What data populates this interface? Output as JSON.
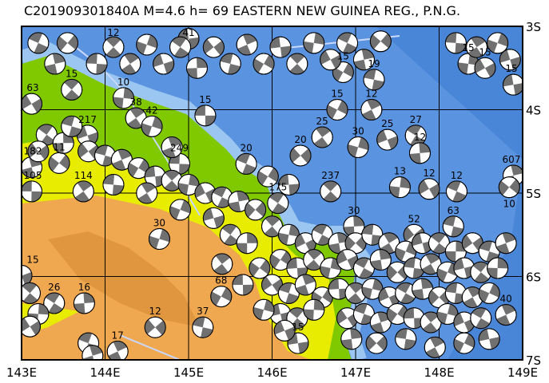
{
  "title": "C201909301840A  M=4.6  h=  69  EASTERN  NEW  GUINEA REG., P.N.G.",
  "map": {
    "lon_range": [
      143,
      149
    ],
    "lat_range": [
      -3,
      -7
    ],
    "lon_ticks": [
      {
        "value": 143,
        "label": "143E"
      },
      {
        "value": 144,
        "label": "144E"
      },
      {
        "value": 145,
        "label": "145E"
      },
      {
        "value": 146,
        "label": "146E"
      },
      {
        "value": 147,
        "label": "147E"
      },
      {
        "value": 148,
        "label": "148E"
      },
      {
        "value": 149,
        "label": "149E"
      }
    ],
    "lat_ticks": [
      {
        "value": -3,
        "label": "3S"
      },
      {
        "value": -4,
        "label": "4S"
      },
      {
        "value": -5,
        "label": "5S"
      },
      {
        "value": -6,
        "label": "6S"
      },
      {
        "value": -7,
        "label": "7S"
      }
    ],
    "grid": true,
    "colors": {
      "ocean_deep": "#3f7fd6",
      "ocean": "#5a93df",
      "shelf": "#9cc6f2",
      "lowland": "#80c800",
      "hills": "#e8ec00",
      "highland": "#f0a850",
      "peaks": "#dc8c3c",
      "mechanism_fill": "#707070"
    }
  },
  "events": [
    [
      145.2,
      -4.07,
      "15"
    ],
    [
      146.6,
      -4.33,
      "25"
    ],
    [
      147.03,
      -4.45,
      "30"
    ],
    [
      147.38,
      -4.36,
      "25"
    ],
    [
      147.72,
      -4.31,
      "27"
    ],
    [
      147.77,
      -4.52,
      "12"
    ],
    [
      146.34,
      -4.55,
      "20"
    ],
    [
      147.22,
      -3.64,
      "19"
    ],
    [
      147.19,
      -4.0,
      "12"
    ],
    [
      146.78,
      -4.0,
      "15"
    ],
    [
      148.89,
      -3.7,
      "15"
    ],
    [
      143.6,
      -3.76,
      "15"
    ],
    [
      144.22,
      -3.86,
      "10"
    ],
    [
      143.12,
      -3.93,
      "63"
    ],
    [
      145.69,
      -4.65,
      "20"
    ],
    [
      143.12,
      -4.69,
      "182"
    ],
    [
      143.45,
      -4.64,
      "11"
    ],
    [
      143.12,
      -4.98,
      "105"
    ],
    [
      143.74,
      -4.98,
      "114"
    ],
    [
      144.65,
      -5.55,
      "30"
    ],
    [
      143.0,
      -5.99,
      "15"
    ],
    [
      143.39,
      -6.32,
      "26"
    ],
    [
      143.75,
      -6.32,
      "16"
    ],
    [
      144.6,
      -6.61,
      "12"
    ],
    [
      145.17,
      -6.61,
      "37"
    ],
    [
      144.15,
      -6.9,
      "17"
    ],
    [
      145.39,
      -6.24,
      "68"
    ],
    [
      146.31,
      -6.8,
      "15"
    ],
    [
      146.7,
      -4.98,
      "237"
    ],
    [
      147.53,
      -4.93,
      "13"
    ],
    [
      147.88,
      -4.95,
      "12"
    ],
    [
      148.21,
      -4.98,
      "12"
    ],
    [
      148.89,
      -4.79,
      "607"
    ],
    [
      148.84,
      -4.93,
      "10"
    ],
    [
      144.89,
      -4.65,
      "249"
    ],
    [
      144.37,
      -4.1,
      "38"
    ],
    [
      144.56,
      -4.2,
      "42"
    ],
    [
      143.79,
      -4.31,
      "217"
    ],
    [
      146.07,
      -5.12,
      "175"
    ],
    [
      146.98,
      -5.4,
      "30"
    ],
    [
      147.7,
      -5.5,
      "52"
    ],
    [
      148.17,
      -5.4,
      "63"
    ],
    [
      148.8,
      -6.46,
      "40"
    ],
    [
      146.85,
      -3.55,
      "15"
    ],
    [
      145.0,
      -3.15,
      "41"
    ],
    [
      144.1,
      -3.25,
      "12"
    ],
    [
      148.35,
      -3.45,
      "15"
    ],
    [
      148.55,
      -3.5,
      "15"
    ],
    [
      143.2,
      -3.2,
      ""
    ],
    [
      143.4,
      -3.45,
      ""
    ],
    [
      143.55,
      -3.2,
      ""
    ],
    [
      143.9,
      -3.45,
      ""
    ],
    [
      144.3,
      -3.45,
      ""
    ],
    [
      144.5,
      -3.22,
      ""
    ],
    [
      144.7,
      -3.45,
      ""
    ],
    [
      144.9,
      -3.25,
      ""
    ],
    [
      145.1,
      -3.5,
      ""
    ],
    [
      145.3,
      -3.25,
      ""
    ],
    [
      145.5,
      -3.45,
      ""
    ],
    [
      145.7,
      -3.22,
      ""
    ],
    [
      145.9,
      -3.45,
      ""
    ],
    [
      146.1,
      -3.25,
      ""
    ],
    [
      146.3,
      -3.45,
      ""
    ],
    [
      146.5,
      -3.2,
      ""
    ],
    [
      146.7,
      -3.4,
      ""
    ],
    [
      146.9,
      -3.2,
      ""
    ],
    [
      147.1,
      -3.4,
      ""
    ],
    [
      147.3,
      -3.18,
      ""
    ],
    [
      148.2,
      -3.2,
      ""
    ],
    [
      148.45,
      -3.25,
      ""
    ],
    [
      148.7,
      -3.2,
      ""
    ],
    [
      148.85,
      -3.4,
      ""
    ],
    [
      143.3,
      -4.3,
      ""
    ],
    [
      143.5,
      -4.4,
      ""
    ],
    [
      143.8,
      -4.5,
      ""
    ],
    [
      144.0,
      -4.55,
      ""
    ],
    [
      144.2,
      -4.6,
      ""
    ],
    [
      144.4,
      -4.7,
      ""
    ],
    [
      144.6,
      -4.8,
      ""
    ],
    [
      144.8,
      -4.85,
      ""
    ],
    [
      145.0,
      -4.9,
      ""
    ],
    [
      145.2,
      -5.0,
      ""
    ],
    [
      145.4,
      -5.05,
      ""
    ],
    [
      145.6,
      -5.1,
      ""
    ],
    [
      145.8,
      -5.2,
      ""
    ],
    [
      144.1,
      -4.9,
      ""
    ],
    [
      144.5,
      -5.0,
      ""
    ],
    [
      144.9,
      -5.2,
      ""
    ],
    [
      145.3,
      -5.3,
      ""
    ],
    [
      145.5,
      -5.5,
      ""
    ],
    [
      145.7,
      -5.6,
      ""
    ],
    [
      143.2,
      -4.5,
      ""
    ],
    [
      143.6,
      -4.2,
      ""
    ],
    [
      144.8,
      -4.45,
      ""
    ],
    [
      145.95,
      -4.8,
      ""
    ],
    [
      146.2,
      -4.9,
      ""
    ],
    [
      146.0,
      -5.4,
      ""
    ],
    [
      146.2,
      -5.5,
      ""
    ],
    [
      146.4,
      -5.6,
      ""
    ],
    [
      146.6,
      -5.5,
      ""
    ],
    [
      146.8,
      -5.6,
      ""
    ],
    [
      147.0,
      -5.6,
      ""
    ],
    [
      147.2,
      -5.5,
      ""
    ],
    [
      147.4,
      -5.6,
      ""
    ],
    [
      147.6,
      -5.7,
      ""
    ],
    [
      147.8,
      -5.6,
      ""
    ],
    [
      148.0,
      -5.6,
      ""
    ],
    [
      148.2,
      -5.7,
      ""
    ],
    [
      148.4,
      -5.6,
      ""
    ],
    [
      148.6,
      -5.7,
      ""
    ],
    [
      148.8,
      -5.6,
      ""
    ],
    [
      146.1,
      -5.8,
      ""
    ],
    [
      146.3,
      -5.9,
      ""
    ],
    [
      146.5,
      -5.8,
      ""
    ],
    [
      146.7,
      -5.9,
      ""
    ],
    [
      146.9,
      -5.8,
      ""
    ],
    [
      147.1,
      -5.9,
      ""
    ],
    [
      147.3,
      -5.8,
      ""
    ],
    [
      147.5,
      -5.95,
      ""
    ],
    [
      147.7,
      -5.9,
      ""
    ],
    [
      147.9,
      -5.85,
      ""
    ],
    [
      148.1,
      -5.95,
      ""
    ],
    [
      148.3,
      -5.9,
      ""
    ],
    [
      148.5,
      -5.95,
      ""
    ],
    [
      148.7,
      -5.9,
      ""
    ],
    [
      146.0,
      -6.1,
      ""
    ],
    [
      146.2,
      -6.2,
      ""
    ],
    [
      146.4,
      -6.1,
      ""
    ],
    [
      146.6,
      -6.25,
      ""
    ],
    [
      146.8,
      -6.15,
      ""
    ],
    [
      147.0,
      -6.2,
      ""
    ],
    [
      147.2,
      -6.15,
      ""
    ],
    [
      147.4,
      -6.25,
      ""
    ],
    [
      147.6,
      -6.2,
      ""
    ],
    [
      147.8,
      -6.15,
      ""
    ],
    [
      148.0,
      -6.25,
      ""
    ],
    [
      148.2,
      -6.2,
      ""
    ],
    [
      148.4,
      -6.25,
      ""
    ],
    [
      148.6,
      -6.2,
      ""
    ],
    [
      146.1,
      -6.45,
      ""
    ],
    [
      146.3,
      -6.5,
      ""
    ],
    [
      146.5,
      -6.4,
      ""
    ],
    [
      146.9,
      -6.5,
      ""
    ],
    [
      147.1,
      -6.45,
      ""
    ],
    [
      147.3,
      -6.55,
      ""
    ],
    [
      147.5,
      -6.45,
      ""
    ],
    [
      147.7,
      -6.5,
      ""
    ],
    [
      147.9,
      -6.55,
      ""
    ],
    [
      148.1,
      -6.45,
      ""
    ],
    [
      148.3,
      -6.55,
      ""
    ],
    [
      148.5,
      -6.5,
      ""
    ],
    [
      146.95,
      -6.75,
      ""
    ],
    [
      147.25,
      -6.8,
      ""
    ],
    [
      147.6,
      -6.75,
      ""
    ],
    [
      147.95,
      -6.85,
      ""
    ],
    [
      148.3,
      -6.8,
      ""
    ],
    [
      148.6,
      -6.75,
      ""
    ],
    [
      143.1,
      -6.2,
      ""
    ],
    [
      143.2,
      -6.45,
      ""
    ],
    [
      143.1,
      -6.6,
      ""
    ],
    [
      143.8,
      -6.8,
      ""
    ],
    [
      143.85,
      -6.95,
      ""
    ],
    [
      145.85,
      -5.9,
      ""
    ],
    [
      145.65,
      -6.1,
      ""
    ],
    [
      145.4,
      -5.85,
      ""
    ],
    [
      145.9,
      -6.4,
      ""
    ],
    [
      146.15,
      -6.65,
      ""
    ]
  ]
}
